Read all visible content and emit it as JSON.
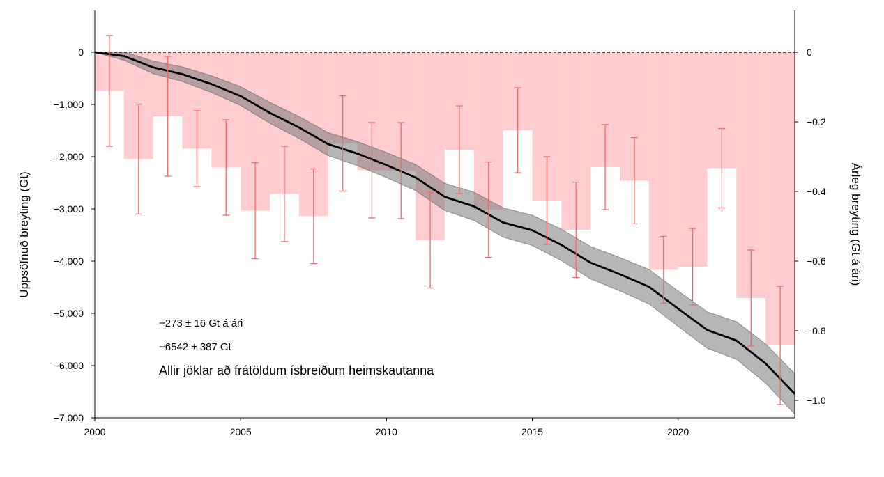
{
  "chart_data": {
    "type": "bar",
    "title": "",
    "xlabel": "",
    "ylabel_left": "Uppsöfnuð breyting (Gt)",
    "ylabel_right": "Árleg breyting (Gt á ári)",
    "xlim": [
      2000,
      2024
    ],
    "ylim_left": [
      -7000,
      800
    ],
    "ylim_right": [
      -1.05,
      0.12
    ],
    "x_ticks": [
      "2000",
      "2005",
      "2010",
      "2015",
      "2020"
    ],
    "y_ticks_left": [
      "0",
      "−1,000",
      "−2,000",
      "−3,000",
      "−4,000",
      "−5,000",
      "−6,000",
      "−7,000"
    ],
    "y_ticks_right": [
      "0",
      "−0.2",
      "−0.4",
      "−0.6",
      "−0.8",
      "−1.0"
    ],
    "series": [
      {
        "type": "bar",
        "axis": "right",
        "color": "#ffcdcf",
        "errorbar_color": "#f06b6b",
        "years": [
          2000,
          2001,
          2002,
          2003,
          2004,
          2005,
          2006,
          2007,
          2008,
          2009,
          2010,
          2011,
          2012,
          2013,
          2014,
          2015,
          2016,
          2017,
          2018,
          2019,
          2020,
          2021,
          2022,
          2023
        ],
        "values": [
          -0.111,
          -0.307,
          -0.184,
          -0.277,
          -0.331,
          -0.455,
          -0.407,
          -0.471,
          -0.262,
          -0.339,
          -0.34,
          -0.54,
          -0.28,
          -0.452,
          -0.224,
          -0.426,
          -0.51,
          -0.33,
          -0.369,
          -0.625,
          -0.616,
          -0.333,
          -0.706,
          -0.842
        ],
        "errors": [
          0.159,
          0.158,
          0.172,
          0.109,
          0.137,
          0.138,
          0.137,
          0.136,
          0.137,
          0.137,
          0.138,
          0.137,
          0.126,
          0.137,
          0.122,
          0.126,
          0.137,
          0.122,
          0.124,
          0.096,
          0.11,
          0.114,
          0.138,
          0.17
        ]
      },
      {
        "type": "line",
        "axis": "left",
        "color": "#000000",
        "band_color": "#7a7a7a",
        "x": [
          2000,
          2001,
          2002,
          2003,
          2004,
          2005,
          2006,
          2007,
          2008,
          2009,
          2010,
          2011,
          2012,
          2013,
          2014,
          2015,
          2016,
          2017,
          2018,
          2019,
          2020,
          2021,
          2022,
          2023,
          2024
        ],
        "y": [
          0,
          -73,
          -290,
          -420,
          -610,
          -840,
          -1160,
          -1440,
          -1760,
          -1940,
          -2160,
          -2400,
          -2770,
          -2950,
          -3260,
          -3410,
          -3690,
          -4030,
          -4250,
          -4490,
          -4910,
          -5320,
          -5520,
          -5960,
          -6542
        ],
        "uncertainty": [
          0,
          80,
          120,
          140,
          160,
          180,
          200,
          210,
          220,
          230,
          240,
          250,
          260,
          270,
          280,
          290,
          300,
          310,
          320,
          330,
          340,
          350,
          360,
          375,
          387
        ]
      }
    ],
    "zero_line": {
      "style": "dashed",
      "color": "#000000"
    },
    "annotations": [
      "−273 ± 16 Gt á ári",
      "−6542 ± 387 Gt",
      "Allir jöklar að frátöldum ísbreiðum heimskautanna"
    ]
  }
}
